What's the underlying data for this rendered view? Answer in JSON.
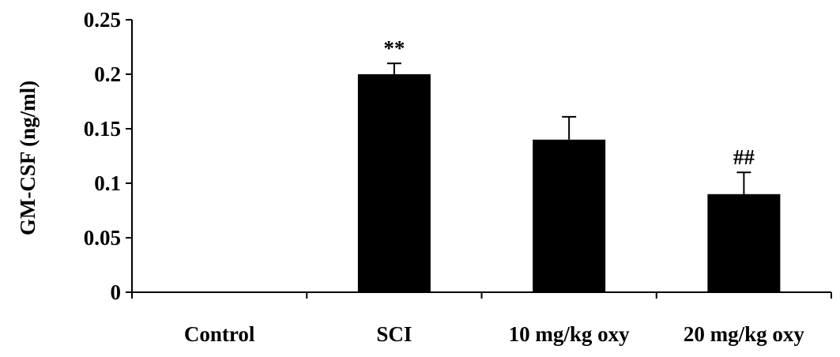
{
  "chart_data": {
    "type": "bar",
    "title": "",
    "xlabel": "",
    "ylabel": "GM-CSF (ng/ml)",
    "ylim": [
      0,
      0.25
    ],
    "yticks": [
      "0",
      "0.05",
      "0.1",
      "0.15",
      "0.2",
      "0.25"
    ],
    "ytick_values": [
      0,
      0.05,
      0.1,
      0.15,
      0.2,
      0.25
    ],
    "categories": [
      "Control",
      "SCI",
      "10 mg/kg oxy",
      "20 mg/kg oxy"
    ],
    "values": [
      0,
      0.2,
      0.14,
      0.09
    ],
    "errors": [
      0,
      0.01,
      0.021,
      0.02
    ],
    "annotations": [
      "",
      "**",
      "",
      "##"
    ],
    "bar_color": "#000000",
    "grid": false,
    "legend": "none"
  }
}
